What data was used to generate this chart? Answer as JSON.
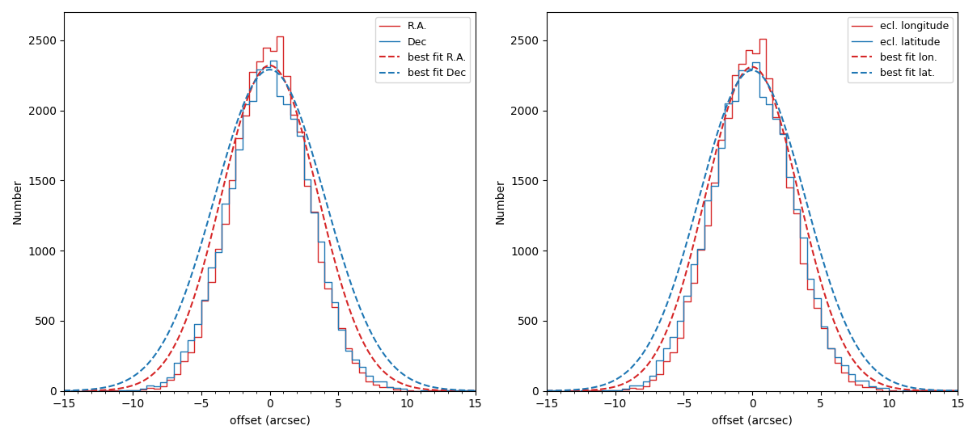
{
  "panel1": {
    "hist1_label": "R.A.",
    "hist1_color": "#d62728",
    "hist2_label": "Dec",
    "hist2_color": "#1f77b4",
    "fit1_label": "best fit R.A.",
    "fit1_color": "#d62728",
    "fit2_label": "best fit Dec",
    "fit2_color": "#1f77b4",
    "hist1_mu": 0.0,
    "hist1_sigma": 2.8,
    "hist1_amp": 2480,
    "hist2_mu": 0.0,
    "hist2_sigma": 2.9,
    "hist2_amp": 2380,
    "fit1_mu": 0.0,
    "fit1_sigma": 3.5,
    "fit1_amp": 2320,
    "fit2_mu": 0.0,
    "fit2_sigma": 4.0,
    "fit2_amp": 2290,
    "xlabel": "offset (arcsec)",
    "ylabel": "Number",
    "xlim": [
      -15,
      15
    ],
    "ylim": [
      0,
      2700
    ],
    "n_samples": 30000
  },
  "panel2": {
    "hist1_label": "ecl. longitude",
    "hist1_color": "#d62728",
    "hist2_label": "ecl. latitude",
    "hist2_color": "#1f77b4",
    "fit1_label": "best fit lon.",
    "fit1_color": "#d62728",
    "fit2_label": "best fit lat.",
    "fit2_color": "#1f77b4",
    "hist1_mu": 0.0,
    "hist1_sigma": 2.8,
    "hist1_amp": 2460,
    "hist2_mu": 0.0,
    "hist2_sigma": 2.95,
    "hist2_amp": 2370,
    "fit1_mu": 0.0,
    "fit1_sigma": 3.4,
    "fit1_amp": 2310,
    "fit2_mu": 0.0,
    "fit2_sigma": 3.85,
    "fit2_amp": 2285,
    "xlabel": "offset (arcsec)",
    "ylabel": "Number",
    "xlim": [
      -15,
      15
    ],
    "ylim": [
      0,
      2700
    ],
    "n_samples": 30000
  },
  "bin_width": 0.5,
  "figsize": [
    12.08,
    5.42
  ],
  "dpi": 100,
  "noise_seed1": 42,
  "noise_seed2": 123
}
